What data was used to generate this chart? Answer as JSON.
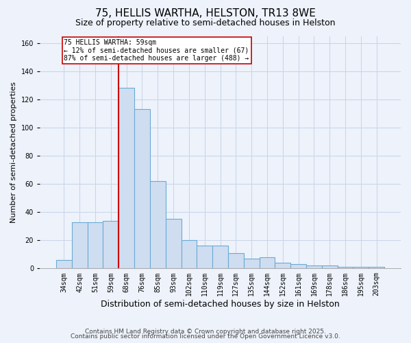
{
  "title": "75, HELLIS WARTHA, HELSTON, TR13 8WE",
  "subtitle": "Size of property relative to semi-detached houses in Helston",
  "xlabel": "Distribution of semi-detached houses by size in Helston",
  "ylabel": "Number of semi-detached properties",
  "bar_labels": [
    "34sqm",
    "42sqm",
    "51sqm",
    "59sqm",
    "68sqm",
    "76sqm",
    "85sqm",
    "93sqm",
    "102sqm",
    "110sqm",
    "119sqm",
    "127sqm",
    "135sqm",
    "144sqm",
    "152sqm",
    "161sqm",
    "169sqm",
    "178sqm",
    "186sqm",
    "195sqm",
    "203sqm"
  ],
  "bar_values": [
    6,
    33,
    33,
    34,
    128,
    113,
    62,
    35,
    20,
    16,
    16,
    11,
    7,
    8,
    4,
    3,
    2,
    2,
    1,
    1,
    1
  ],
  "bar_color": "#cfddf0",
  "bar_edgecolor": "#6aaad4",
  "bar_linewidth": 0.8,
  "vline_x_index": 3,
  "vline_color": "#cc0000",
  "vline_linewidth": 1.5,
  "annotation_title": "75 HELLIS WARTHA: 59sqm",
  "annotation_line1": "← 12% of semi-detached houses are smaller (67)",
  "annotation_line2": "87% of semi-detached houses are larger (488) →",
  "annotation_box_edgecolor": "#cc0000",
  "annotation_box_facecolor": "#ffffff",
  "ylim": [
    0,
    165
  ],
  "yticks": [
    0,
    20,
    40,
    60,
    80,
    100,
    120,
    140,
    160
  ],
  "grid_color": "#c8d4e8",
  "background_color": "#edf2fb",
  "footer1": "Contains HM Land Registry data © Crown copyright and database right 2025.",
  "footer2": "Contains public sector information licensed under the Open Government Licence v3.0.",
  "title_fontsize": 11,
  "subtitle_fontsize": 9,
  "xlabel_fontsize": 9,
  "ylabel_fontsize": 8,
  "tick_fontsize": 7,
  "footer_fontsize": 6.5
}
